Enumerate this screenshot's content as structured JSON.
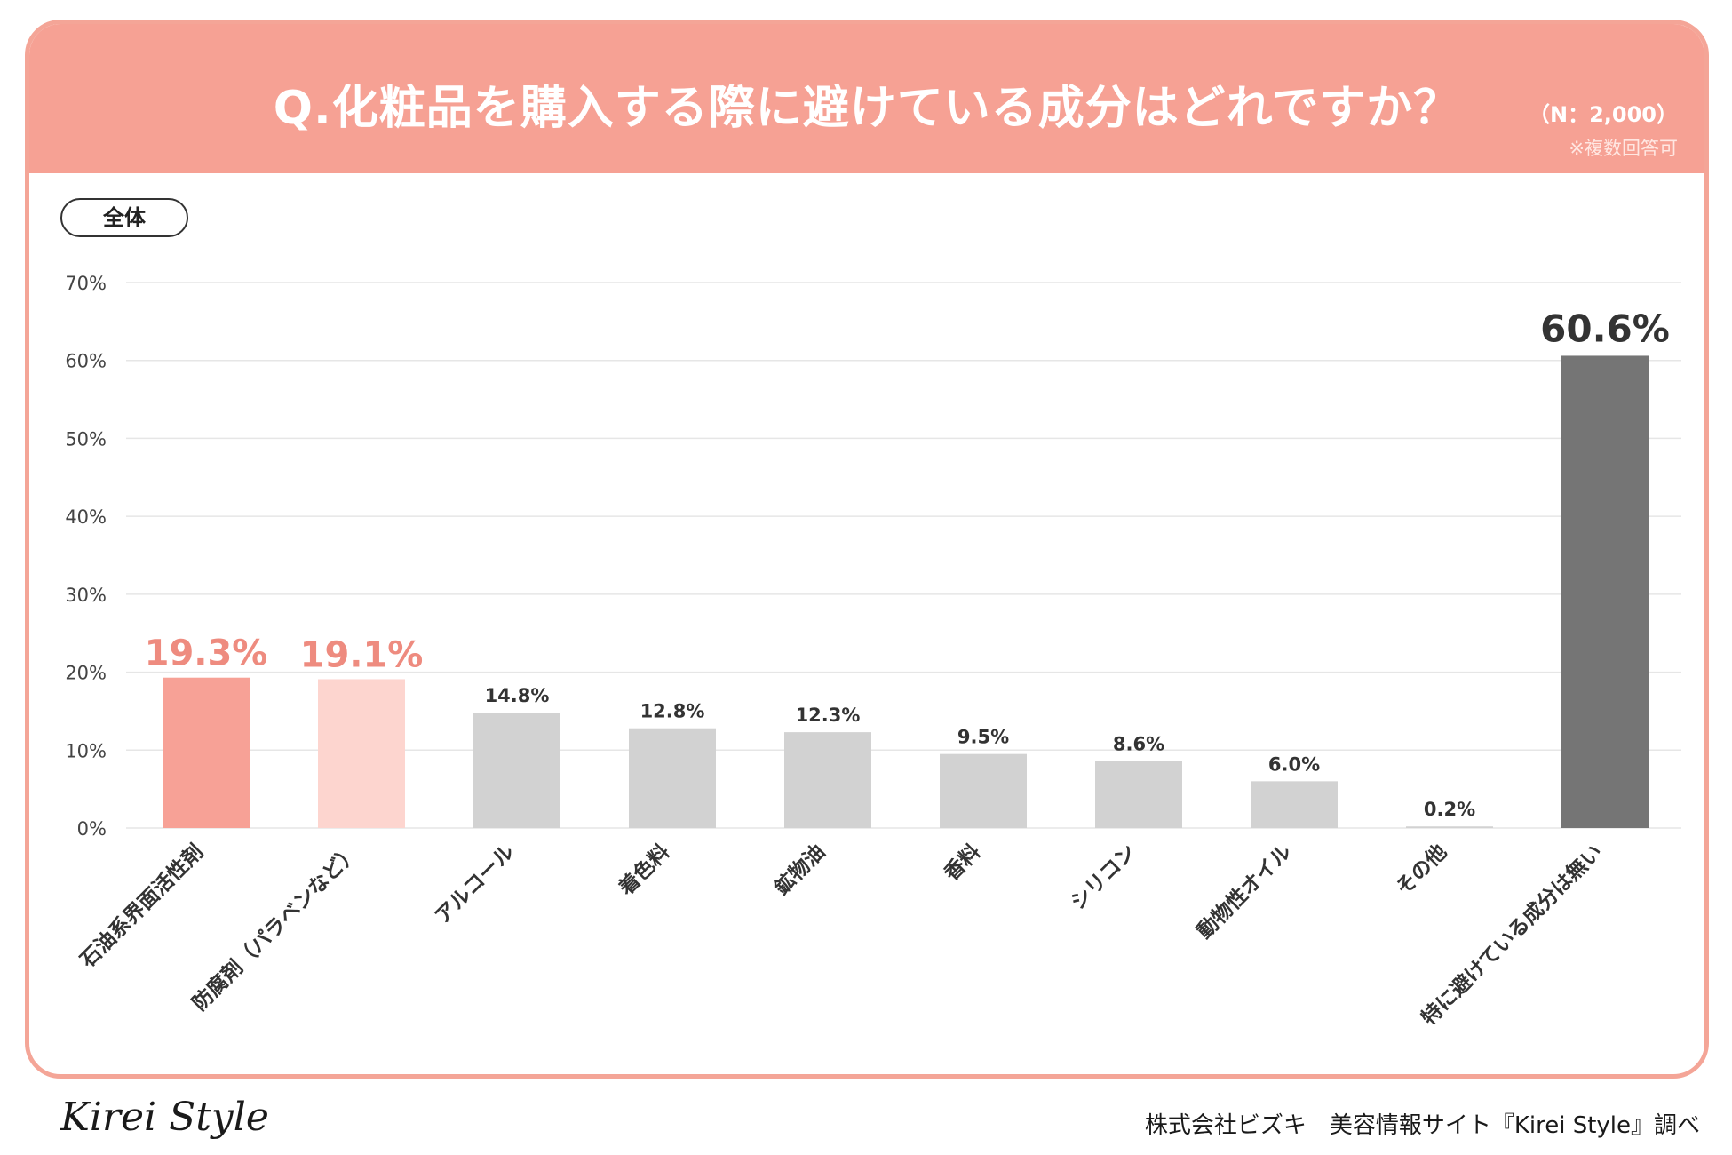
{
  "header": {
    "title": "Q.化粧品を購入する際に避けている成分はどれですか？",
    "n_label": "（N：2,000）",
    "multi_label": "※複数回答可"
  },
  "filter": {
    "label": "全体"
  },
  "footer": {
    "logo": "Kirei Style",
    "credit": "株式会社ビズキ　美容情報サイト『Kirei Style』調べ"
  },
  "colors": {
    "header": "#f6a194",
    "border": "#f4a597",
    "highlight_1": "#f7a196",
    "highlight_2": "#fdd5cf",
    "default_bar": "#d2d2d2",
    "none_bar": "#757575",
    "highlight_label": "#ee8b7f",
    "text": "#333333",
    "grid": "#e6e6e6"
  },
  "chart_data": {
    "type": "bar",
    "categories": [
      "石油系界面活性剤",
      "防腐剤（パラベンなど）",
      "アルコール",
      "着色料",
      "鉱物油",
      "香料",
      "シリコン",
      "動物性オイル",
      "その他",
      "特に避けている成分は無い"
    ],
    "values": [
      19.3,
      19.1,
      14.8,
      12.8,
      12.3,
      9.5,
      8.6,
      6.0,
      0.2,
      60.6
    ],
    "value_labels": [
      "19.3%",
      "19.1%",
      "14.8%",
      "12.8%",
      "12.3%",
      "9.5%",
      "8.6%",
      "6.0%",
      "0.2%",
      "60.6%"
    ],
    "ylim": [
      0,
      70
    ],
    "yticks": [
      0,
      10,
      20,
      30,
      40,
      50,
      60,
      70
    ],
    "ytick_labels": [
      "0%",
      "10%",
      "20%",
      "30%",
      "40%",
      "50%",
      "60%",
      "70%"
    ],
    "grid": true,
    "xlabel": "",
    "ylabel": ""
  }
}
